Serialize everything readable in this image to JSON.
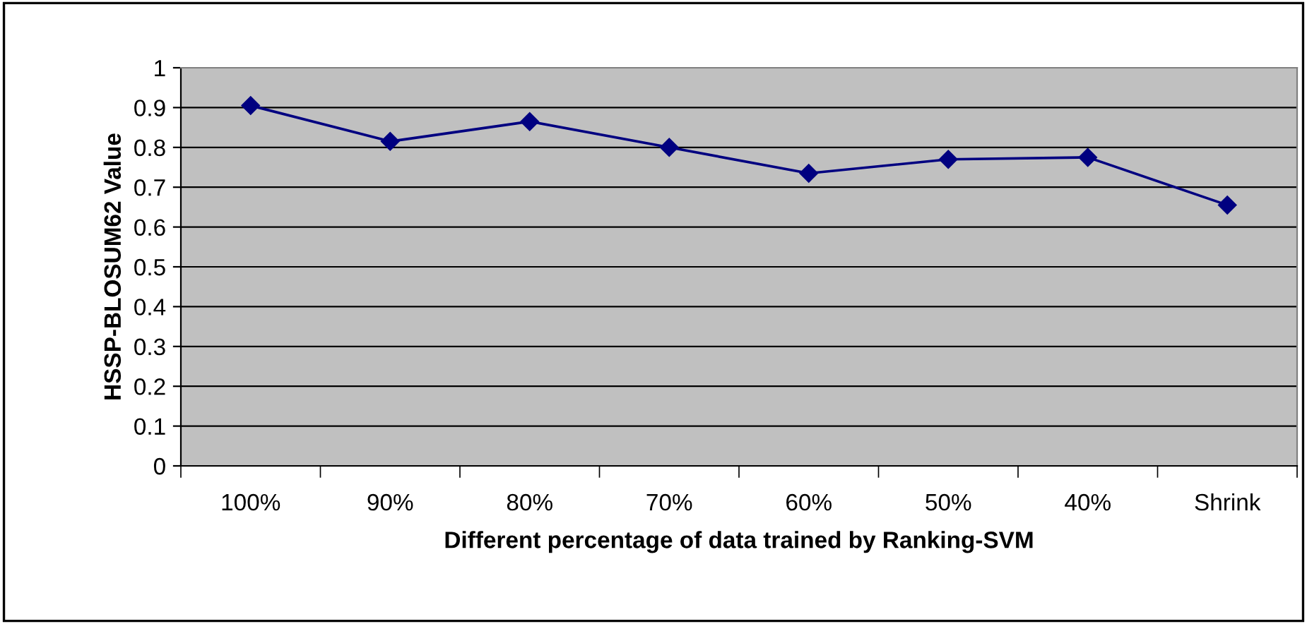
{
  "chart_data": {
    "type": "line",
    "xlabel": "Different percentage of data trained by Ranking-SVM",
    "ylabel": "HSSP-BLOSUM62 Value",
    "categories": [
      "100%",
      "90%",
      "80%",
      "70%",
      "60%",
      "50%",
      "40%",
      "Shrink"
    ],
    "series": [
      {
        "color": "#000080",
        "values": [
          0.905,
          0.815,
          0.865,
          0.8,
          0.735,
          0.77,
          0.775,
          0.655
        ]
      }
    ],
    "ylim": [
      0,
      1
    ],
    "yticks": [
      0,
      0.1,
      0.2,
      0.3,
      0.4,
      0.5,
      0.6,
      0.7,
      0.8,
      0.9,
      1
    ],
    "grid": "y",
    "marker": "diamond",
    "line_style": "solid",
    "legend": false
  }
}
